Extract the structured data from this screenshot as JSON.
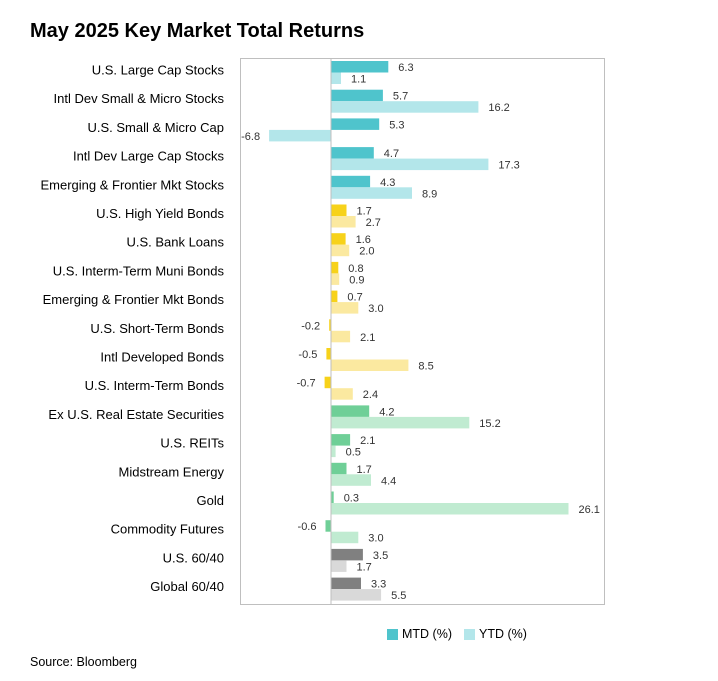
{
  "chart_data": {
    "type": "bar",
    "orientation": "horizontal",
    "title": "May 2025 Key Market Total Returns",
    "source": "Source: Bloomberg",
    "xlim": [
      -10,
      30
    ],
    "categories": [
      "U.S. Large Cap Stocks",
      "Intl Dev Small & Micro Stocks",
      "U.S. Small & Micro Cap",
      "Intl Dev Large Cap Stocks",
      "Emerging & Frontier Mkt Stocks",
      "U.S. High Yield Bonds",
      "U.S. Bank Loans",
      "U.S. Interm-Term Muni Bonds",
      "Emerging & Frontier Mkt Bonds",
      "U.S. Short-Term Bonds",
      "Intl Developed Bonds",
      "U.S. Interm-Term Bonds",
      "Ex U.S. Real Estate Securities",
      "U.S. REITs",
      "Midstream Energy",
      "Gold",
      "Commodity Futures",
      "U.S. 60/40",
      "Global 60/40"
    ],
    "series": [
      {
        "name": "MTD (%)",
        "values": [
          6.3,
          5.7,
          5.3,
          4.7,
          4.3,
          1.7,
          1.6,
          0.8,
          0.7,
          -0.2,
          -0.5,
          -0.7,
          4.2,
          2.1,
          1.7,
          0.3,
          -0.6,
          3.5,
          3.3
        ],
        "labels": [
          "6.3",
          "5.7",
          "5.3",
          "4.7",
          "4.3",
          "1.7",
          "1.6",
          "0.8",
          "0.7",
          "-0.2",
          "-0.5",
          "-0.7",
          "4.2",
          "2.1",
          "1.7",
          "0.3",
          "-0.6",
          "3.5",
          "3.3"
        ]
      },
      {
        "name": "YTD (%)",
        "values": [
          1.1,
          16.2,
          -6.8,
          17.3,
          8.9,
          2.7,
          2.0,
          0.9,
          3.0,
          2.1,
          8.5,
          2.4,
          15.2,
          0.5,
          4.4,
          26.1,
          3.0,
          1.7,
          5.5
        ],
        "labels": [
          "1.1",
          "16.2",
          "-6.8",
          "17.3",
          "8.9",
          "2.7",
          "2.0",
          "0.9",
          "3.0",
          "2.1",
          "8.5",
          "2.4",
          "15.2",
          "0.5",
          "4.4",
          "26.1",
          "3.0",
          "1.7",
          "5.5"
        ]
      }
    ],
    "groups": [
      "equity",
      "equity",
      "equity",
      "equity",
      "equity",
      "bond",
      "bond",
      "bond",
      "bond",
      "bond",
      "bond",
      "bond",
      "real",
      "real",
      "real",
      "real",
      "real",
      "balanced",
      "balanced"
    ],
    "group_colors": {
      "equity": {
        "mtd": "#4fc4cc",
        "ytd": "#b3e6ea"
      },
      "bond": {
        "mtd": "#f7d21a",
        "ytd": "#fbe9a0"
      },
      "real": {
        "mtd": "#6fcf97",
        "ytd": "#c0ebd1"
      },
      "balanced": {
        "mtd": "#808080",
        "ytd": "#d9d9d9"
      }
    },
    "legend": {
      "position": "bottom",
      "items": [
        {
          "label": "MTD (%)",
          "color": "#4fc4cc"
        },
        {
          "label": "YTD (%)",
          "color": "#b3e6ea"
        }
      ]
    }
  }
}
